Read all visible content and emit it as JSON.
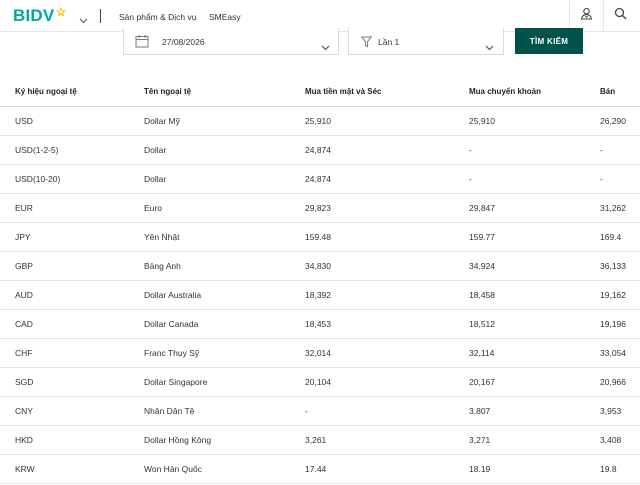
{
  "header": {
    "logo_text": "BIDV",
    "nav": [
      "Sản phẩm & Dịch vụ",
      "SMEasy"
    ],
    "user_icon": "user-icon",
    "search_icon": "search-icon"
  },
  "filters": {
    "date_value": "27/08/2026",
    "time_value": "Lần 1",
    "search_button": "TÌM KIẾM"
  },
  "colors": {
    "brand": "#00a99d",
    "button": "#00524a",
    "logo_star": "#f5c400"
  },
  "table": {
    "columns": [
      "Ký hiệu ngoại tệ",
      "Tên ngoại tệ",
      "Mua tiền mặt và Séc",
      "Mua chuyển khoản",
      "Bán"
    ],
    "rows": [
      [
        "USD",
        "Dollar Mỹ",
        "25,910",
        "25,910",
        "26,290"
      ],
      [
        "USD(1-2-5)",
        "Dollar",
        "24,874",
        "-",
        "-"
      ],
      [
        "USD(10-20)",
        "Dollar",
        "24,874",
        "-",
        "-"
      ],
      [
        "EUR",
        "Euro",
        "29,823",
        "29,847",
        "31,262"
      ],
      [
        "JPY",
        "Yên Nhật",
        "159.48",
        "159.77",
        "169.4"
      ],
      [
        "GBP",
        "Bảng Anh",
        "34,830",
        "34,924",
        "36,133"
      ],
      [
        "AUD",
        "Dollar Australia",
        "18,392",
        "18,458",
        "19,162"
      ],
      [
        "CAD",
        "Dollar Canada",
        "18,453",
        "18,512",
        "19,196"
      ],
      [
        "CHF",
        "Franc Thụy Sỹ",
        "32,014",
        "32,114",
        "33,054"
      ],
      [
        "SGD",
        "Dollar Singapore",
        "20,104",
        "20,167",
        "20,966"
      ],
      [
        "CNY",
        "Nhân Dân Tệ",
        "-",
        "3,807",
        "3,953"
      ],
      [
        "HKD",
        "Dollar Hồng Kông",
        "3,261",
        "3,271",
        "3,408"
      ],
      [
        "KRW",
        "Won Hàn Quốc",
        "17.44",
        "18.19",
        "19.8"
      ]
    ]
  }
}
